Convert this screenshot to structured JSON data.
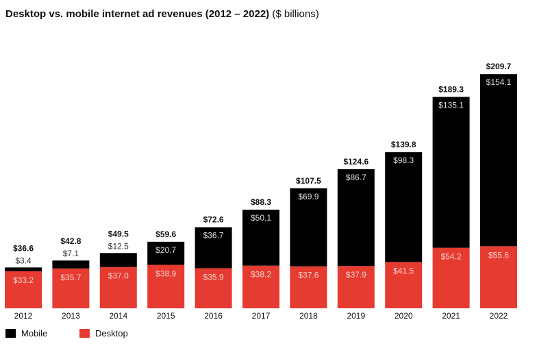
{
  "chart_data": {
    "type": "bar",
    "stacked": true,
    "title": "Desktop vs. mobile internet ad revenues (2012 – 2022)",
    "subtitle": "($ billions)",
    "categories": [
      "2012",
      "2013",
      "2014",
      "2015",
      "2016",
      "2017",
      "2018",
      "2019",
      "2020",
      "2021",
      "2022"
    ],
    "series": [
      {
        "name": "Desktop",
        "color": "#e63b30",
        "values": [
          33.2,
          35.7,
          37.0,
          38.9,
          35.9,
          38.2,
          37.6,
          37.9,
          41.5,
          54.2,
          55.6
        ],
        "labels": [
          "$33.2",
          "$35.7",
          "$37.0",
          "$38.9",
          "$35.9",
          "$38.2",
          "$37.6",
          "$37.9",
          "$41.5",
          "$54.2",
          "$55.6"
        ]
      },
      {
        "name": "Mobile",
        "color": "#000000",
        "values": [
          3.4,
          7.1,
          12.5,
          20.7,
          36.7,
          50.1,
          69.9,
          86.7,
          98.3,
          135.1,
          154.1
        ],
        "labels": [
          "$3.4",
          "$7.1",
          "$12.5",
          "$20.7",
          "$36.7",
          "$50.1",
          "$69.9",
          "$86.7",
          "$98.3",
          "$135.1",
          "$154.1"
        ]
      }
    ],
    "totals": [
      36.6,
      42.8,
      49.5,
      59.6,
      72.6,
      88.3,
      107.5,
      124.6,
      139.8,
      189.3,
      209.7
    ],
    "total_labels": [
      "$36.6",
      "$42.8",
      "$49.5",
      "$59.6",
      "$72.6",
      "$88.3",
      "$107.5",
      "$124.6",
      "$139.8",
      "$189.3",
      "$209.7"
    ],
    "legend": [
      "Mobile",
      "Desktop"
    ],
    "legend_position": "bottom-left",
    "grid": false
  }
}
